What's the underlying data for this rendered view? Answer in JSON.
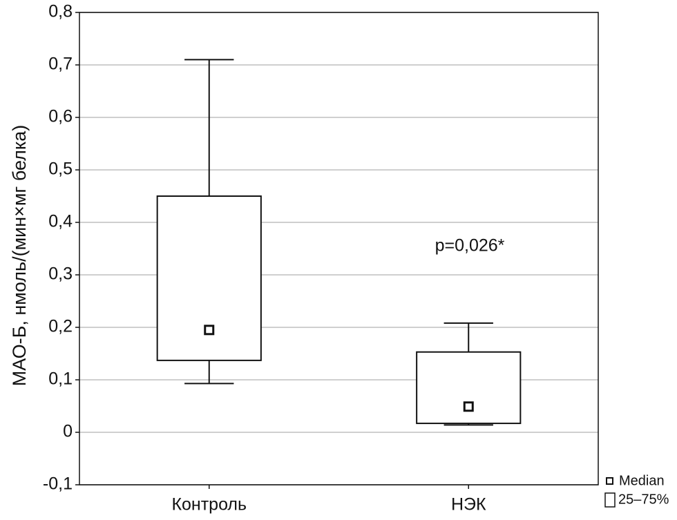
{
  "chart_data": {
    "type": "box",
    "y_label": "МАО-Б, нмоль/(мин×мг белка)",
    "categories": [
      "Контроль",
      "НЭК"
    ],
    "boxes": [
      {
        "whisker_low": 0.093,
        "q1": 0.137,
        "median": 0.195,
        "q3": 0.45,
        "whisker_high": 0.71
      },
      {
        "whisker_low": 0.014,
        "q1": 0.017,
        "median": 0.049,
        "q3": 0.153,
        "whisker_high": 0.208
      }
    ],
    "annotation": "p=0,026*",
    "legend": [
      "Median",
      "25–75%"
    ],
    "ylim": [
      -0.1,
      0.8
    ],
    "yticks": [
      {
        "value": -0.1,
        "label": "-0,1"
      },
      0,
      {
        "value": 0.1,
        "label": "0,1"
      },
      {
        "value": 0.2,
        "label": "0,2"
      },
      {
        "value": 0.3,
        "label": "0,3"
      },
      {
        "value": 0.4,
        "label": "0,4"
      },
      {
        "value": 0.5,
        "label": "0,5"
      },
      {
        "value": 0.6,
        "label": "0,6"
      },
      {
        "value": 0.7,
        "label": "0,7"
      },
      {
        "value": 0.8,
        "label": "0,8"
      }
    ],
    "grid": true,
    "color": "#111111"
  }
}
